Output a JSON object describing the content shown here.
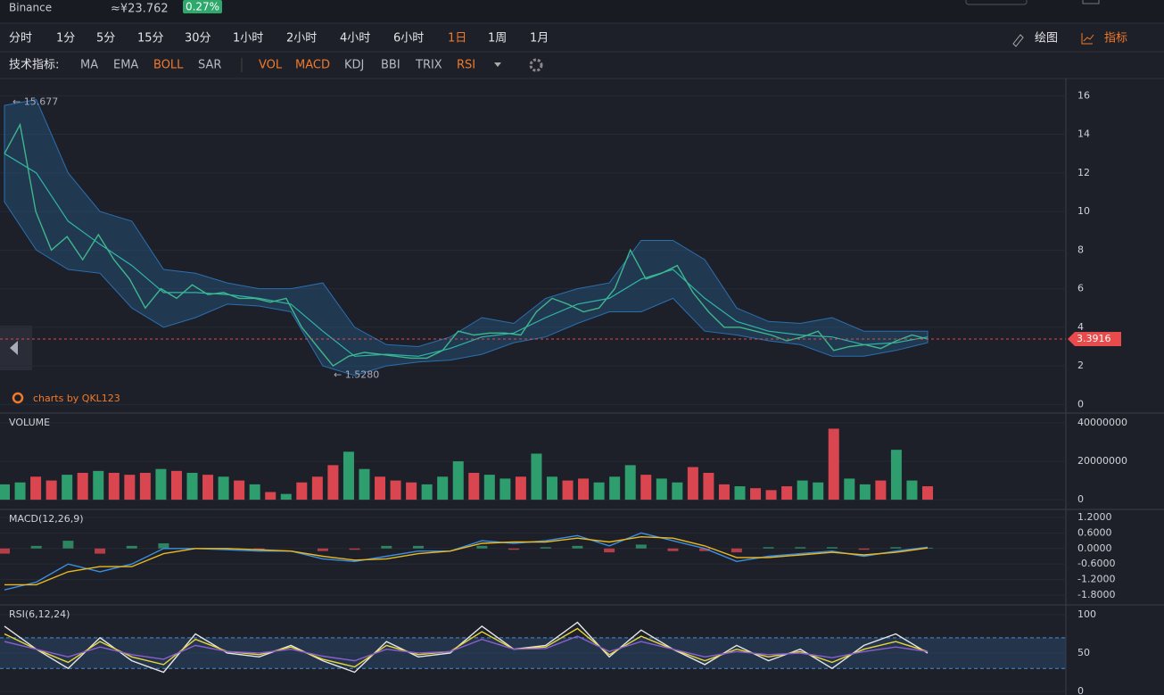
{
  "header": {
    "exchange": "Binance",
    "price": "≈¥23.762",
    "change": "0.27%"
  },
  "toolbar": {
    "timeframes": [
      {
        "label": "分时",
        "active": false
      },
      {
        "label": "1分",
        "active": false
      },
      {
        "label": "5分",
        "active": false
      },
      {
        "label": "15分",
        "active": false
      },
      {
        "label": "30分",
        "active": false
      },
      {
        "label": "1小时",
        "active": false
      },
      {
        "label": "2小时",
        "active": false
      },
      {
        "label": "4小时",
        "active": false
      },
      {
        "label": "6小时",
        "active": false
      },
      {
        "label": "1日",
        "active": true
      },
      {
        "label": "1周",
        "active": false
      },
      {
        "label": "1月",
        "active": false
      }
    ],
    "draw": "绘图",
    "indicators": "指标"
  },
  "indicator_bar": {
    "label": "技术指标:",
    "main": [
      {
        "label": "MA",
        "active": false
      },
      {
        "label": "EMA",
        "active": false
      },
      {
        "label": "BOLL",
        "active": true
      },
      {
        "label": "SAR",
        "active": false
      }
    ],
    "sub": [
      {
        "label": "VOL",
        "active": true
      },
      {
        "label": "MACD",
        "active": true
      },
      {
        "label": "KDJ",
        "active": false
      },
      {
        "label": "BBI",
        "active": false
      },
      {
        "label": "TRIX",
        "active": false
      },
      {
        "label": "RSI",
        "active": true
      }
    ]
  },
  "chart_data": [
    {
      "type": "line",
      "watermark": "charts by QKL123",
      "ylim": [
        -0.4,
        16.8
      ],
      "yticks": [
        0,
        2,
        4,
        6,
        8,
        10,
        12,
        14,
        16
      ],
      "high": {
        "value": 15.677,
        "label": "← 15.677"
      },
      "low": {
        "value": 1.528,
        "label": "← 1.5280"
      },
      "last_price": 3.3916,
      "series": [
        {
          "color": "#3fb68b",
          "values": [
            13,
            14.5,
            10,
            8,
            8.7,
            7.5,
            8.8,
            7.5,
            6.5,
            5,
            6,
            5.5,
            6.2,
            5.7,
            5.8,
            5.5,
            5.5,
            5.3,
            5.5,
            4,
            3,
            2,
            2.5,
            2.7,
            2.6,
            2.5,
            2.4,
            2.4,
            2.8,
            3.8,
            3.6,
            3.7,
            3.7,
            3.6,
            4.8,
            5.5,
            5.2,
            4.8,
            5,
            6,
            8,
            6.5,
            6.8,
            7.2,
            5.8,
            4.8,
            4,
            4,
            3.8,
            3.6,
            3.3,
            3.5,
            3.8,
            2.8,
            3,
            3.1,
            2.9,
            3.3,
            3.6,
            3.39
          ]
        }
      ],
      "bands": {
        "color": "#2a6fb0",
        "mid_color": "#2fb5a8",
        "upper": [
          15.5,
          15.8,
          12,
          10,
          9.5,
          7,
          6.8,
          6.3,
          6,
          6,
          6.3,
          4,
          3.1,
          3,
          3.5,
          4.5,
          4.2,
          5.5,
          6,
          6.3,
          8.5,
          8.5,
          7.5,
          5,
          4.3,
          4.2,
          4.5,
          3.8,
          3.8,
          3.8
        ],
        "mid": [
          13,
          12,
          9.5,
          8.3,
          7.2,
          5.8,
          5.8,
          5.7,
          5.5,
          5.2,
          3.8,
          2.5,
          2.6,
          2.5,
          2.9,
          3.5,
          3.7,
          4.5,
          5.2,
          5.5,
          6.5,
          7,
          5.5,
          4.3,
          3.8,
          3.6,
          3.5,
          3.1,
          3.2,
          3.5
        ],
        "lower": [
          10.5,
          8,
          7,
          6.8,
          5,
          4,
          4.5,
          5.2,
          5.1,
          4.8,
          2,
          1.5,
          2,
          2.2,
          2.3,
          2.6,
          3.2,
          3.5,
          4.2,
          4.8,
          4.8,
          5.5,
          3.8,
          3.6,
          3.3,
          3.1,
          2.5,
          2.5,
          2.8,
          3.2
        ]
      }
    },
    {
      "type": "bar",
      "title": "VOLUME",
      "ylim": [
        -4600000,
        44200000
      ],
      "yticks": [
        0,
        20000000,
        40000000
      ],
      "up_color": "#2f9e6e",
      "down_color": "#d9464f",
      "values": [
        8000000,
        9000000,
        12000000,
        10000000,
        13000000,
        14000000,
        15000000,
        14000000,
        13000000,
        14000000,
        16000000,
        15000000,
        14000000,
        13000000,
        12000000,
        10000000,
        8000000,
        4000000,
        3000000,
        9000000,
        12000000,
        18000000,
        25000000,
        16000000,
        12000000,
        10000000,
        9000000,
        8000000,
        12000000,
        20000000,
        14000000,
        13000000,
        11000000,
        12000000,
        24000000,
        12000000,
        10000000,
        11000000,
        9000000,
        12000000,
        18000000,
        13000000,
        11000000,
        9000000,
        17000000,
        14000000,
        8000000,
        7000000,
        6000000,
        5000000,
        7000000,
        10000000,
        9000000,
        37000000,
        11000000,
        8000000,
        10000000,
        26000000,
        10000000,
        7000000
      ]
    },
    {
      "type": "line",
      "title": "MACD(12,26,9)",
      "ylim": [
        -2.18,
        1.44
      ],
      "yticks": [
        {
          "value": 1.2,
          "label": "1.2000"
        },
        {
          "value": 0.6,
          "label": "0.6000"
        },
        {
          "value": 0,
          "label": "0.0000"
        },
        {
          "value": -0.6,
          "label": "-0.6000"
        },
        {
          "value": -1.2,
          "label": "-1.2000"
        },
        {
          "value": -1.8,
          "label": "-1.8000"
        }
      ],
      "series": [
        {
          "color": "#3b8fe0",
          "values": [
            -1.6,
            -1.3,
            -0.6,
            -0.9,
            -0.6,
            0,
            0,
            -0.05,
            -0.1,
            -0.1,
            -0.4,
            -0.5,
            -0.3,
            -0.1,
            -0.1,
            0.3,
            0.2,
            0.3,
            0.5,
            0.1,
            0.6,
            0.3,
            0,
            -0.5,
            -0.3,
            -0.2,
            -0.1,
            -0.3,
            -0.1,
            0.05
          ]
        },
        {
          "color": "#e8b923",
          "values": [
            -1.4,
            -1.4,
            -0.9,
            -0.7,
            -0.7,
            -0.2,
            0,
            0,
            -0.05,
            -0.1,
            -0.3,
            -0.45,
            -0.4,
            -0.2,
            -0.1,
            0.2,
            0.25,
            0.25,
            0.4,
            0.25,
            0.45,
            0.4,
            0.1,
            -0.35,
            -0.35,
            -0.25,
            -0.15,
            -0.25,
            -0.15,
            0.02
          ]
        }
      ],
      "histogram": {
        "up_color": "#2f9e6e",
        "down_color": "#d9464f",
        "values": [
          -0.2,
          0.1,
          0.3,
          -0.2,
          0.1,
          0.2,
          0,
          -0.05,
          -0.05,
          0,
          -0.1,
          -0.05,
          0.1,
          0.1,
          0,
          0.1,
          -0.05,
          0.05,
          0.1,
          -0.15,
          0.15,
          -0.1,
          -0.1,
          -0.15,
          0.05,
          0.05,
          0.05,
          -0.05,
          0.05,
          0.03
        ]
      }
    },
    {
      "type": "line",
      "title": "RSI(6,12,24)",
      "ylim": [
        -4.6,
        110.5
      ],
      "yticks": [
        0,
        50,
        100
      ],
      "guides": [
        70,
        30
      ],
      "series": [
        {
          "color": "#e6e6e6",
          "values": [
            85,
            55,
            30,
            70,
            40,
            25,
            75,
            50,
            45,
            60,
            40,
            25,
            65,
            45,
            50,
            85,
            55,
            60,
            90,
            45,
            80,
            55,
            35,
            60,
            40,
            55,
            30,
            60,
            75,
            50
          ]
        },
        {
          "color": "#e8d53a",
          "values": [
            75,
            55,
            38,
            65,
            45,
            35,
            68,
            52,
            48,
            58,
            42,
            32,
            60,
            48,
            52,
            78,
            55,
            58,
            82,
            48,
            72,
            55,
            40,
            55,
            45,
            52,
            38,
            55,
            65,
            52
          ]
        },
        {
          "color": "#8a5fd0",
          "values": [
            65,
            55,
            45,
            58,
            48,
            42,
            60,
            52,
            50,
            55,
            46,
            40,
            55,
            50,
            52,
            68,
            55,
            56,
            72,
            52,
            65,
            55,
            45,
            52,
            48,
            50,
            44,
            52,
            58,
            52
          ]
        }
      ]
    }
  ]
}
